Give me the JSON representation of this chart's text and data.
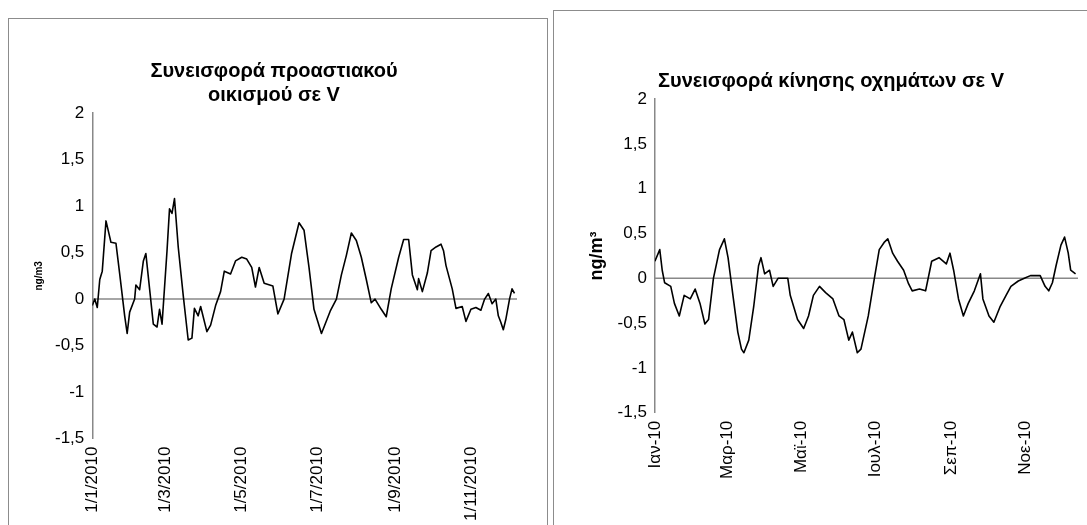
{
  "chart_data": [
    {
      "type": "line",
      "title": "Συνεισφορά προαστιακού οικισμού σε V",
      "ylabel": "ng/m3",
      "x": [
        "2010-01-01",
        "2010-01-03",
        "2010-01-05",
        "2010-01-07",
        "2010-01-09",
        "2010-01-12",
        "2010-01-16",
        "2010-01-20",
        "2010-01-23",
        "2010-01-27",
        "2010-01-29",
        "2010-01-31",
        "2010-02-04",
        "2010-02-05",
        "2010-02-08",
        "2010-02-11",
        "2010-02-13",
        "2010-02-16",
        "2010-02-19",
        "2010-02-22",
        "2010-02-24",
        "2010-02-26",
        "2010-03-02",
        "2010-03-04",
        "2010-03-06",
        "2010-03-08",
        "2010-03-11",
        "2010-03-15",
        "2010-03-19",
        "2010-03-22",
        "2010-03-24",
        "2010-03-27",
        "2010-03-29",
        "2010-04-03",
        "2010-04-06",
        "2010-04-10",
        "2010-04-14",
        "2010-04-17",
        "2010-04-22",
        "2010-04-26",
        "2010-05-01",
        "2010-05-05",
        "2010-05-09",
        "2010-05-12",
        "2010-05-15",
        "2010-05-19",
        "2010-05-26",
        "2010-05-30",
        "2010-06-04",
        "2010-06-10",
        "2010-06-16",
        "2010-06-20",
        "2010-06-24",
        "2010-06-28",
        "2010-07-04",
        "2010-07-11",
        "2010-07-16",
        "2010-07-20",
        "2010-07-24",
        "2010-07-28",
        "2010-08-01",
        "2010-08-05",
        "2010-08-09",
        "2010-08-13",
        "2010-08-16",
        "2010-08-21",
        "2010-08-25",
        "2010-08-29",
        "2010-09-04",
        "2010-09-08",
        "2010-09-12",
        "2010-09-15",
        "2010-09-19",
        "2010-09-20",
        "2010-09-23",
        "2010-09-27",
        "2010-09-30",
        "2010-10-04",
        "2010-10-08",
        "2010-10-10",
        "2010-10-12",
        "2010-10-17",
        "2010-10-20",
        "2010-10-25",
        "2010-10-28",
        "2010-11-01",
        "2010-11-05",
        "2010-11-09",
        "2010-11-12",
        "2010-11-15",
        "2010-11-18",
        "2010-11-21",
        "2010-11-23",
        "2010-11-25",
        "2010-11-27",
        "2010-11-29",
        "2010-12-02",
        "2010-12-04",
        "2010-12-06"
      ],
      "series": [
        {
          "color": "#000000",
          "values": [
            -0.07,
            0,
            -0.09,
            0.21,
            0.3,
            0.84,
            0.61,
            0.6,
            0.27,
            -0.18,
            -0.37,
            -0.14,
            0,
            0.15,
            0.1,
            0.41,
            0.49,
            0.11,
            -0.27,
            -0.3,
            -0.11,
            -0.27,
            0.52,
            0.97,
            0.92,
            1.08,
            0.56,
            0.04,
            -0.44,
            -0.42,
            -0.1,
            -0.18,
            -0.08,
            -0.35,
            -0.28,
            -0.07,
            0.08,
            0.3,
            0.27,
            0.41,
            0.45,
            0.43,
            0.34,
            0.13,
            0.34,
            0.17,
            0.14,
            -0.16,
            0,
            0.49,
            0.82,
            0.74,
            0.34,
            -0.11,
            -0.37,
            -0.13,
            0,
            0.26,
            0.47,
            0.71,
            0.63,
            0.45,
            0.21,
            -0.04,
            0,
            -0.11,
            -0.19,
            0.11,
            0.45,
            0.64,
            0.64,
            0.26,
            0.1,
            0.22,
            0.08,
            0.28,
            0.52,
            0.56,
            0.59,
            0.52,
            0.36,
            0.11,
            -0.1,
            -0.08,
            -0.24,
            -0.11,
            -0.09,
            -0.12,
            0,
            0.06,
            -0.05,
            0,
            -0.18,
            -0.25,
            -0.33,
            -0.22,
            0,
            0.11,
            0.06
          ]
        }
      ],
      "xlim": [
        "2010-01-01",
        "2010-12-08"
      ],
      "xticks": [
        {
          "value": "2010-01-01",
          "label": "1/1/2010"
        },
        {
          "value": "2010-03-01",
          "label": "1/3/2010"
        },
        {
          "value": "2010-05-01",
          "label": "1/5/2010"
        },
        {
          "value": "2010-07-01",
          "label": "1/7/2010"
        },
        {
          "value": "2010-09-01",
          "label": "1/9/2010"
        },
        {
          "value": "2010-11-01",
          "label": "1/11/2010"
        }
      ],
      "ylim": [
        -1.5,
        2
      ],
      "yticks": [
        {
          "value": -1.5,
          "label": "-1,5"
        },
        -1,
        {
          "value": -0.5,
          "label": "-0,5"
        },
        0,
        {
          "value": 0.5,
          "label": "0,5"
        },
        1,
        {
          "value": 1.5,
          "label": "1,5"
        },
        2
      ],
      "ref_lines": [
        {
          "axis": "y",
          "value": 0,
          "color": "#888888"
        }
      ],
      "grid": false,
      "legend": false,
      "marker": "none",
      "line_style": "solid"
    },
    {
      "type": "line",
      "title": "Συνεισφορά κίνησης οχημάτων σε V",
      "ylabel": "ng/m³",
      "x": [
        "2010-01-01",
        "2010-01-05",
        "2010-01-07",
        "2010-01-09",
        "2010-01-14",
        "2010-01-17",
        "2010-01-21",
        "2010-01-25",
        "2010-01-30",
        "2010-02-03",
        "2010-02-07",
        "2010-02-11",
        "2010-02-14",
        "2010-02-18",
        "2010-02-23",
        "2010-02-27",
        "2010-03-02",
        "2010-03-06",
        "2010-03-10",
        "2010-03-13",
        "2010-03-15",
        "2010-03-19",
        "2010-03-23",
        "2010-03-27",
        "2010-03-29",
        "2010-04-01",
        "2010-04-05",
        "2010-04-08",
        "2010-04-12",
        "2010-04-15",
        "2010-04-20",
        "2010-04-22",
        "2010-04-28",
        "2010-05-03",
        "2010-05-07",
        "2010-05-11",
        "2010-05-16",
        "2010-05-21",
        "2010-05-27",
        "2010-06-01",
        "2010-06-05",
        "2010-06-09",
        "2010-06-12",
        "2010-06-16",
        "2010-06-19",
        "2010-06-25",
        "2010-06-30",
        "2010-07-04",
        "2010-07-08",
        "2010-07-11",
        "2010-07-15",
        "2010-07-19",
        "2010-07-24",
        "2010-07-28",
        "2010-07-31",
        "2010-08-06",
        "2010-08-11",
        "2010-08-16",
        "2010-08-22",
        "2010-08-28",
        "2010-08-31",
        "2010-09-03",
        "2010-09-07",
        "2010-09-11",
        "2010-09-15",
        "2010-09-20",
        "2010-09-25",
        "2010-09-27",
        "2010-10-02",
        "2010-10-06",
        "2010-10-11",
        "2010-10-16",
        "2010-10-20",
        "2010-10-26",
        "2010-10-31",
        "2010-11-05",
        "2010-11-13",
        "2010-11-17",
        "2010-11-20",
        "2010-11-23",
        "2010-11-26",
        "2010-11-30",
        "2010-12-03",
        "2010-12-06",
        "2010-12-08",
        "2010-12-12"
      ],
      "series": [
        {
          "color": "#000000",
          "values": [
            0.19,
            0.32,
            0.09,
            -0.05,
            -0.09,
            -0.28,
            -0.42,
            -0.19,
            -0.23,
            -0.12,
            -0.28,
            -0.51,
            -0.46,
            0,
            0.32,
            0.44,
            0.23,
            -0.19,
            -0.6,
            -0.79,
            -0.83,
            -0.69,
            -0.32,
            0.14,
            0.23,
            0.05,
            0.09,
            -0.09,
            0,
            0,
            0,
            -0.19,
            -0.46,
            -0.56,
            -0.42,
            -0.19,
            -0.09,
            -0.16,
            -0.23,
            -0.42,
            -0.46,
            -0.69,
            -0.6,
            -0.83,
            -0.79,
            -0.42,
            0,
            0.32,
            0.4,
            0.44,
            0.28,
            0.19,
            0.09,
            -0.06,
            -0.14,
            -0.12,
            -0.14,
            0.19,
            0.23,
            0.16,
            0.28,
            0.09,
            -0.23,
            -0.42,
            -0.28,
            -0.14,
            0.05,
            -0.23,
            -0.42,
            -0.49,
            -0.32,
            -0.19,
            -0.09,
            -0.03,
            0,
            0.03,
            0.03,
            -0.09,
            -0.14,
            -0.05,
            0.14,
            0.37,
            0.46,
            0.28,
            0.09,
            0.05
          ]
        }
      ],
      "xlim": [
        "2010-01-01",
        "2010-12-14"
      ],
      "xticks": [
        {
          "value": "2010-01-01",
          "label": "Ιαν-10"
        },
        {
          "value": "2010-03-01",
          "label": "Μαρ-10"
        },
        {
          "value": "2010-05-01",
          "label": "Μαϊ-10"
        },
        {
          "value": "2010-07-01",
          "label": "Ιουλ-10"
        },
        {
          "value": "2010-09-01",
          "label": "Σεπ-10"
        },
        {
          "value": "2010-11-01",
          "label": "Νοε-10"
        }
      ],
      "ylim": [
        -1.5,
        2
      ],
      "yticks": [
        {
          "value": -1.5,
          "label": "-1,5"
        },
        -1,
        {
          "value": -0.5,
          "label": "-0,5"
        },
        0,
        {
          "value": 0.5,
          "label": "0,5"
        },
        1,
        {
          "value": 1.5,
          "label": "1,5"
        },
        2
      ],
      "ref_lines": [
        {
          "axis": "y",
          "value": 0,
          "color": "#888888"
        }
      ],
      "grid": false,
      "legend": false,
      "marker": "none",
      "line_style": "solid"
    }
  ]
}
